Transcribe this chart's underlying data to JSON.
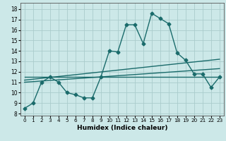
{
  "title": "",
  "xlabel": "Humidex (Indice chaleur)",
  "ylabel": "",
  "background_color": "#cce8e8",
  "grid_color": "#aacccc",
  "line_color": "#1a6b6b",
  "x_ticks": [
    0,
    1,
    2,
    3,
    4,
    5,
    6,
    7,
    8,
    9,
    10,
    11,
    12,
    13,
    14,
    15,
    16,
    17,
    18,
    19,
    20,
    21,
    22,
    23
  ],
  "y_ticks": [
    8,
    9,
    10,
    11,
    12,
    13,
    14,
    15,
    16,
    17,
    18
  ],
  "ylim": [
    7.8,
    18.6
  ],
  "xlim": [
    -0.5,
    23.5
  ],
  "series": [
    {
      "x": [
        0,
        1,
        2,
        3,
        4,
        5,
        6,
        7,
        8,
        9,
        10,
        11,
        12,
        13,
        14,
        15,
        16,
        17,
        18,
        19,
        20,
        21,
        22,
        23
      ],
      "y": [
        8.5,
        9.0,
        11.0,
        11.5,
        11.0,
        10.0,
        9.8,
        9.5,
        9.5,
        11.5,
        14.0,
        13.9,
        16.5,
        16.5,
        14.7,
        17.6,
        17.1,
        16.6,
        13.8,
        13.1,
        11.8,
        11.8,
        10.5,
        11.5
      ],
      "has_marker": true,
      "markersize": 2.5,
      "linewidth": 1.0
    },
    {
      "x": [
        0,
        23
      ],
      "y": [
        11.5,
        11.5
      ],
      "has_marker": false,
      "markersize": 0,
      "linewidth": 1.0
    },
    {
      "x": [
        0,
        23
      ],
      "y": [
        11.2,
        13.2
      ],
      "has_marker": false,
      "markersize": 0,
      "linewidth": 1.0
    },
    {
      "x": [
        0,
        23
      ],
      "y": [
        11.0,
        12.3
      ],
      "has_marker": false,
      "markersize": 0,
      "linewidth": 1.0
    }
  ]
}
